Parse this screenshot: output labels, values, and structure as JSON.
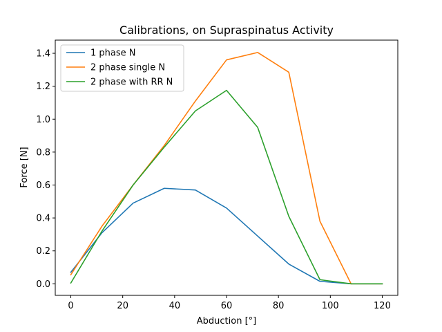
{
  "chart_data": {
    "type": "line",
    "title": "Calibrations, on Supraspinatus Activity",
    "xlabel": "Abduction [°]",
    "ylabel": "Force [N]",
    "xlim": [
      -6,
      126
    ],
    "ylim": [
      -0.07,
      1.48
    ],
    "xticks": [
      0,
      20,
      40,
      60,
      80,
      100,
      120
    ],
    "yticks": [
      0.0,
      0.2,
      0.4,
      0.6,
      0.8,
      1.0,
      1.2,
      1.4
    ],
    "x": [
      0,
      12,
      24,
      36,
      48,
      60,
      72,
      84,
      96,
      108,
      120
    ],
    "grid": false,
    "legend_position": "top-left",
    "series": [
      {
        "name": "1 phase N",
        "color": "#1f77b4",
        "values": [
          0.07,
          0.31,
          0.49,
          0.58,
          0.57,
          0.46,
          0.29,
          0.12,
          0.015,
          0.0,
          0.0
        ]
      },
      {
        "name": "2 phase single N",
        "color": "#ff7f0e",
        "values": [
          0.055,
          0.35,
          0.6,
          0.84,
          1.11,
          1.36,
          1.405,
          1.285,
          0.38,
          0.0,
          0.0
        ]
      },
      {
        "name": "2 phase with RR N",
        "color": "#2ca02c",
        "values": [
          0.005,
          0.32,
          0.6,
          0.83,
          1.05,
          1.175,
          0.95,
          0.41,
          0.025,
          0.0,
          0.0
        ]
      }
    ]
  }
}
